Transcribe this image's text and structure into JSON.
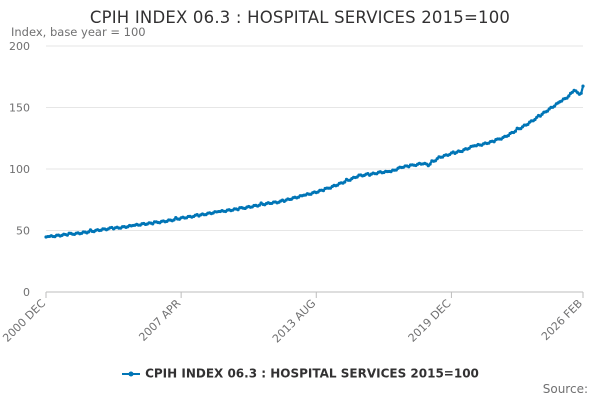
{
  "chart_data": {
    "type": "line",
    "title": "CPIH INDEX 06.3 : HOSPITAL SERVICES 2015=100",
    "ylabel": "Index, base year = 100",
    "xlabel": "",
    "ylim": [
      0,
      200
    ],
    "yticks": [
      "0",
      "50",
      "100",
      "150",
      "200"
    ],
    "xticks": [
      "2000 DEC",
      "2007 APR",
      "2013 AUG",
      "2019 DEC",
      "2026 FEB"
    ],
    "grid": true,
    "legend_position": "bottom",
    "series": [
      {
        "name": "CPIH INDEX 06.3 : HOSPITAL SERVICES 2015=100",
        "color": "#0075b6",
        "points": [
          [
            "2000 DEC",
            44.7
          ],
          [
            "2001 JUN",
            45.7
          ],
          [
            "2001 DEC",
            46.8
          ],
          [
            "2002 JUN",
            47.6
          ],
          [
            "2002 DEC",
            48.9
          ],
          [
            "2003 JUN",
            50.4
          ],
          [
            "2003 DEC",
            51.6
          ],
          [
            "2004 JUN",
            52.4
          ],
          [
            "2004 DEC",
            53.7
          ],
          [
            "2005 JUN",
            55.1
          ],
          [
            "2005 DEC",
            56.0
          ],
          [
            "2006 JUN",
            57.3
          ],
          [
            "2006 DEC",
            58.7
          ],
          [
            "2007 APR",
            60.1
          ],
          [
            "2007 DEC",
            61.8
          ],
          [
            "2008 JUN",
            63.4
          ],
          [
            "2008 DEC",
            65.0
          ],
          [
            "2009 JUN",
            66.2
          ],
          [
            "2009 DEC",
            67.5
          ],
          [
            "2010 JUN",
            69.0
          ],
          [
            "2010 DEC",
            70.7
          ],
          [
            "2011 JUN",
            72.3
          ],
          [
            "2011 DEC",
            73.4
          ],
          [
            "2012 JUN",
            75.9
          ],
          [
            "2012 DEC",
            78.1
          ],
          [
            "2013 AUG",
            81.2
          ],
          [
            "2014 FEB",
            83.9
          ],
          [
            "2014 AUG",
            87.3
          ],
          [
            "2015 FEB",
            90.8
          ],
          [
            "2015 AUG",
            94.6
          ],
          [
            "2016 FEB",
            95.5
          ],
          [
            "2016 AUG",
            97.3
          ],
          [
            "2017 FEB",
            97.9
          ],
          [
            "2017 AUG",
            101.6
          ],
          [
            "2018 FEB",
            102.8
          ],
          [
            "2018 AUG",
            104.6
          ],
          [
            "2018 NOV",
            103.2
          ],
          [
            "2019 MAY",
            109.3
          ],
          [
            "2019 DEC",
            112.5
          ],
          [
            "2020 JUN",
            114.8
          ],
          [
            "2020 DEC",
            118.4
          ],
          [
            "2021 JUN",
            120.2
          ],
          [
            "2021 DEC",
            122.7
          ],
          [
            "2022 JUN",
            126.0
          ],
          [
            "2022 DEC",
            131.0
          ],
          [
            "2023 JUN",
            135.9
          ],
          [
            "2023 DEC",
            141.5
          ],
          [
            "2024 JUN",
            147.6
          ],
          [
            "2024 DEC",
            153.5
          ],
          [
            "2025 JUN",
            159.2
          ],
          [
            "2025 SEP",
            164.4
          ],
          [
            "2025 NOV",
            161.6
          ],
          [
            "2026 JAN",
            161.0
          ],
          [
            "2026 FEB",
            167.4
          ]
        ]
      }
    ]
  },
  "legend": {
    "label": "CPIH INDEX 06.3 : HOSPITAL SERVICES 2015=100"
  },
  "source": {
    "label": "Source:"
  }
}
